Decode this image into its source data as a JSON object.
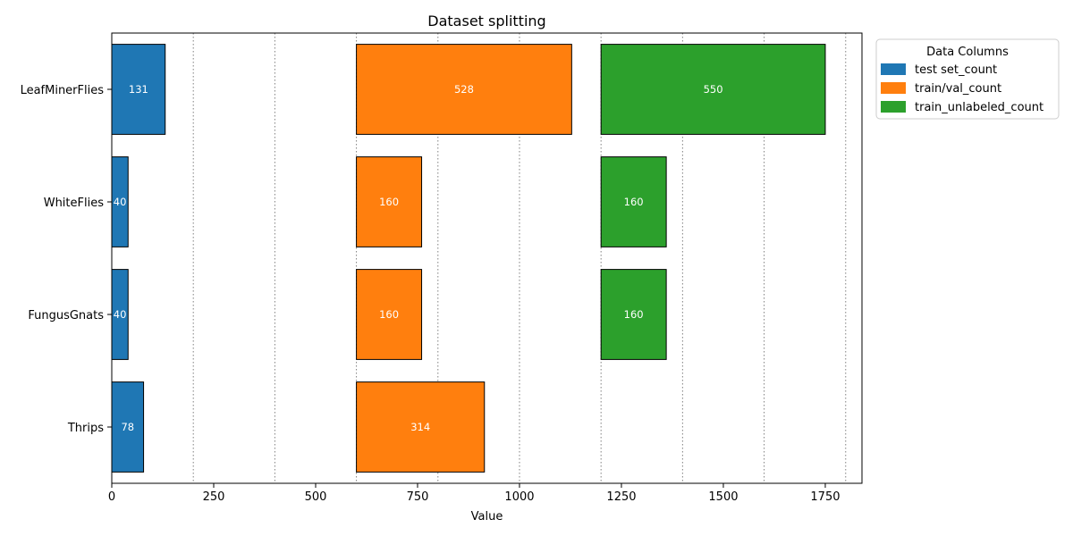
{
  "chart_data": {
    "type": "bar",
    "orientation": "horizontal",
    "layout": "grouped side-by-side panels offset along the value axis",
    "title": "Dataset splitting",
    "xlabel": "Value",
    "ylabel": "",
    "categories": [
      "LeafMinerFlies",
      "WhiteFlies",
      "FungusGnats",
      "Thrips"
    ],
    "series": [
      {
        "name": "test set_count",
        "offset": 0,
        "values": [
          131,
          40,
          40,
          78
        ],
        "color": "#1f77b4"
      },
      {
        "name": "train/val_count",
        "offset": 600,
        "values": [
          528,
          160,
          160,
          314
        ],
        "color": "#ff7f0e"
      },
      {
        "name": "train_unlabeled_count",
        "offset": 1200,
        "values": [
          550,
          160,
          160,
          0
        ],
        "color": "#2ca02c"
      }
    ],
    "xlim": [
      0,
      1840
    ],
    "xticks": [
      0,
      250,
      500,
      750,
      1000,
      1250,
      1500,
      1750
    ],
    "vertical_guides": [
      200,
      400,
      600,
      800,
      1000,
      1200,
      1400,
      1600,
      1800
    ],
    "legend": {
      "title": "Data Columns",
      "position": "outside-top-right"
    },
    "grid": false
  }
}
